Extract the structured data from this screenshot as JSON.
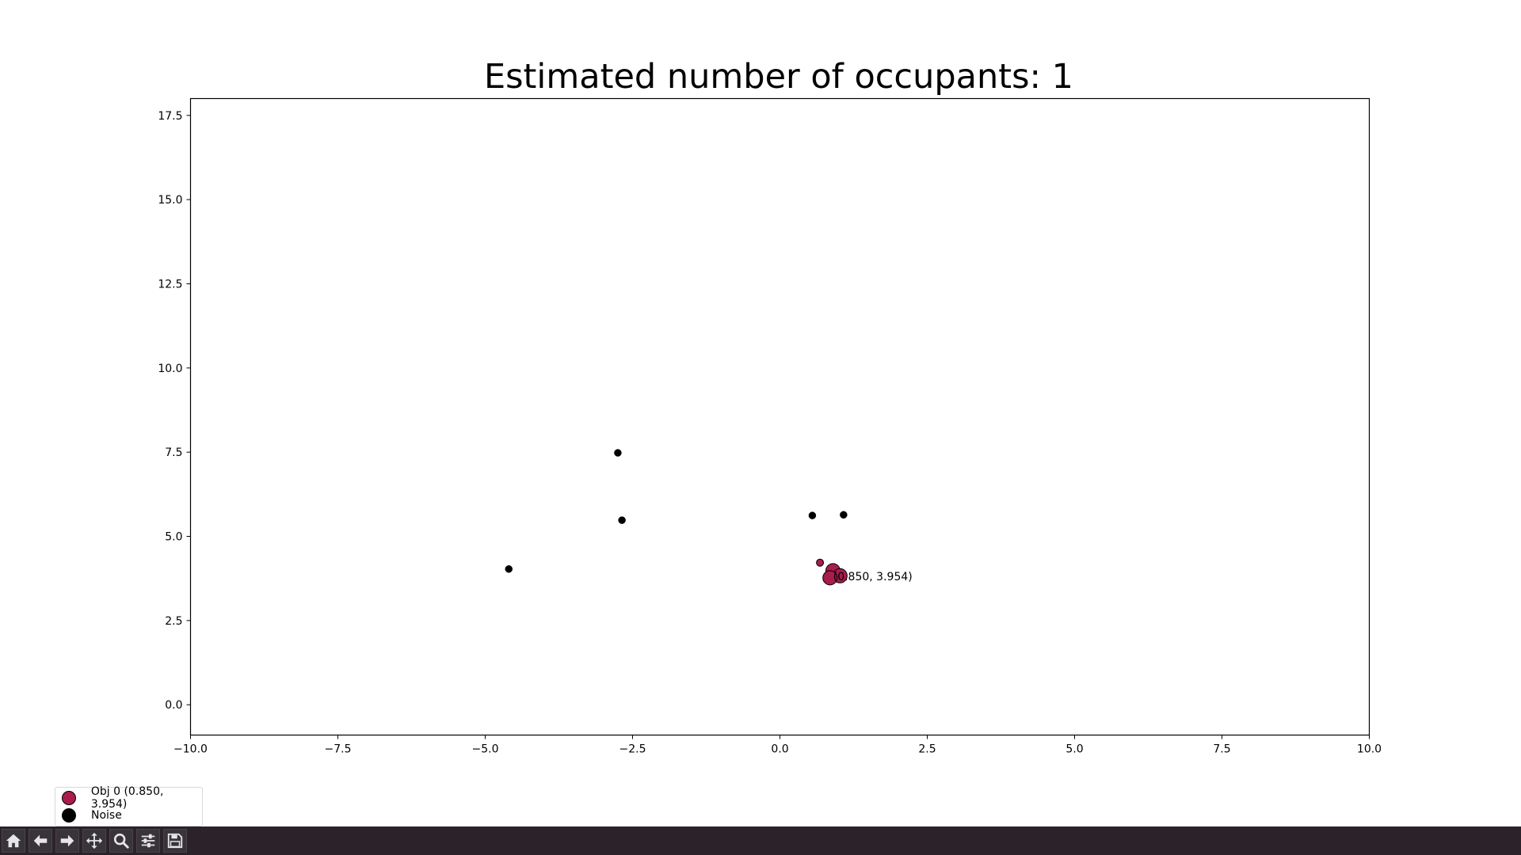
{
  "chart_data": {
    "type": "scatter",
    "title": "Estimated number of occupants: 1",
    "xlabel": "",
    "ylabel": "",
    "xlim": [
      -10,
      10
    ],
    "ylim": [
      -0.9,
      18.0
    ],
    "x_ticks": [
      "−10.0",
      "−7.5",
      "−5.0",
      "−2.5",
      "0.0",
      "2.5",
      "5.0",
      "7.5",
      "10.0"
    ],
    "x_tick_values": [
      -10,
      -7.5,
      -5,
      -2.5,
      0,
      2.5,
      5,
      7.5,
      10
    ],
    "y_ticks": [
      "0.0",
      "2.5",
      "5.0",
      "7.5",
      "10.0",
      "12.5",
      "15.0",
      "17.5"
    ],
    "y_tick_values": [
      0,
      2.5,
      5,
      7.5,
      10,
      12.5,
      15,
      17.5
    ],
    "grid": false,
    "legend_position": "bottom-left, outside plot",
    "series": [
      {
        "name": "Obj 0 (0.850, 3.954)",
        "color": "#a81c4e",
        "points": [
          {
            "x": 0.68,
            "y": 4.22,
            "size": "small"
          },
          {
            "x": 0.9,
            "y": 3.98,
            "size": "large"
          },
          {
            "x": 1.02,
            "y": 3.83,
            "size": "large"
          },
          {
            "x": 0.85,
            "y": 3.77,
            "size": "large"
          }
        ]
      },
      {
        "name": "Noise",
        "color": "#000000",
        "points": [
          {
            "x": -2.75,
            "y": 7.48
          },
          {
            "x": -2.68,
            "y": 5.48
          },
          {
            "x": -4.6,
            "y": 4.03
          },
          {
            "x": 0.55,
            "y": 5.62
          },
          {
            "x": 1.08,
            "y": 5.64
          }
        ]
      }
    ],
    "annotations": [
      {
        "text": "(0.850, 3.954)",
        "x": 0.85,
        "y": 3.954
      }
    ]
  },
  "toolbar": {
    "buttons": [
      {
        "name": "home-button",
        "icon": "home-icon"
      },
      {
        "name": "back-button",
        "icon": "arrow-left-icon"
      },
      {
        "name": "forward-button",
        "icon": "arrow-right-icon"
      },
      {
        "name": "pan-button",
        "icon": "move-icon"
      },
      {
        "name": "zoom-button",
        "icon": "magnifier-icon"
      },
      {
        "name": "configure-subplots-button",
        "icon": "sliders-icon"
      },
      {
        "name": "save-button",
        "icon": "floppy-disk-icon"
      }
    ]
  }
}
